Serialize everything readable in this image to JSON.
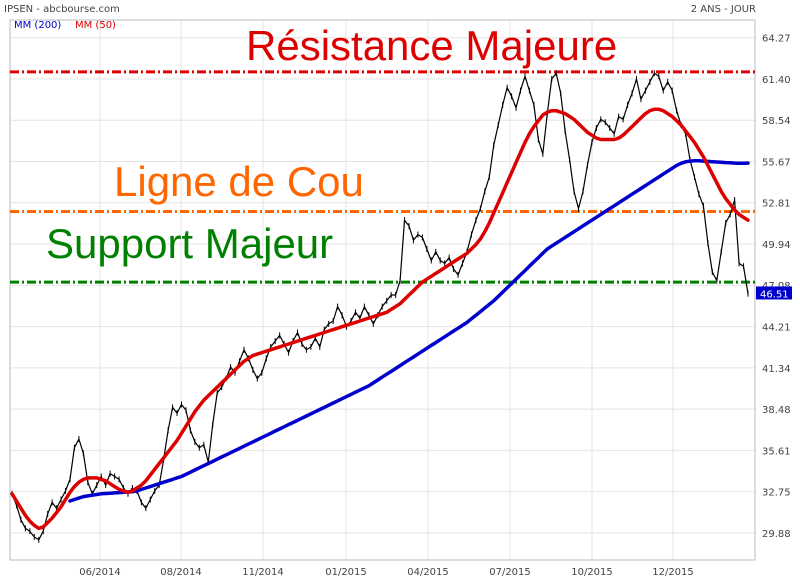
{
  "header": {
    "source": "IPSEN - abcbourse.com",
    "period": "2 ANS - JOUR",
    "legend": [
      {
        "label": "MM (200)",
        "color": "#0000cc"
      },
      {
        "label": "MM (50)",
        "color": "#dd0000"
      }
    ]
  },
  "last_price": "46.51",
  "annotations": [
    {
      "text": "Résistance Majeure",
      "level": 61.9,
      "color": "#dd0000"
    },
    {
      "text": "Ligne de Cou",
      "level": 52.2,
      "color": "#ff6600"
    },
    {
      "text": "Support Majeur",
      "level": 47.3,
      "color": "#008000"
    }
  ],
  "chart_data": {
    "type": "line",
    "title": "IPSEN",
    "xlabel": "",
    "ylabel": "",
    "ylim": [
      28.0,
      65.5
    ],
    "x_tick_labels": [
      "06/2014",
      "08/2014",
      "11/2014",
      "01/2015",
      "04/2015",
      "07/2015",
      "10/2015",
      "12/2015"
    ],
    "y_tick_labels": [
      "64.27",
      "61.40",
      "58.54",
      "55.67",
      "52.81",
      "49.94",
      "47.08",
      "44.21",
      "41.34",
      "38.48",
      "35.61",
      "32.75",
      "29.88"
    ],
    "series": [
      {
        "name": "Cours",
        "color": "#000000",
        "values": [
          32.6,
          31.8,
          30.8,
          30.2,
          30.0,
          29.6,
          29.4,
          30.0,
          31.2,
          32.0,
          31.6,
          32.2,
          32.8,
          33.6,
          35.8,
          36.4,
          35.4,
          33.4,
          32.6,
          33.2,
          33.8,
          33.2,
          34.0,
          33.8,
          33.6,
          33.0,
          32.6,
          33.0,
          32.8,
          32.0,
          31.6,
          32.2,
          32.8,
          33.2,
          35.0,
          37.0,
          38.6,
          38.2,
          38.8,
          38.4,
          37.0,
          36.2,
          35.8,
          36.0,
          34.8,
          37.4,
          39.6,
          40.0,
          40.6,
          41.4,
          41.0,
          41.8,
          42.6,
          42.0,
          41.2,
          40.6,
          41.0,
          42.0,
          42.8,
          43.2,
          43.6,
          43.0,
          42.4,
          43.2,
          43.8,
          43.0,
          42.6,
          42.8,
          43.4,
          42.8,
          44.0,
          44.4,
          44.6,
          45.6,
          45.0,
          44.2,
          44.6,
          45.2,
          44.8,
          45.6,
          45.0,
          44.4,
          45.0,
          45.6,
          46.0,
          46.4,
          46.4,
          47.4,
          51.6,
          51.2,
          50.2,
          50.6,
          50.4,
          49.6,
          48.8,
          49.4,
          48.8,
          48.6,
          49.0,
          48.2,
          47.8,
          48.6,
          49.4,
          50.6,
          51.6,
          52.4,
          53.6,
          54.6,
          56.8,
          58.2,
          59.6,
          60.8,
          60.2,
          59.4,
          60.6,
          61.6,
          60.6,
          59.6,
          57.2,
          56.2,
          59.0,
          61.4,
          61.8,
          60.4,
          57.8,
          55.8,
          53.6,
          52.4,
          53.6,
          55.4,
          57.0,
          58.0,
          58.6,
          58.4,
          58.0,
          57.6,
          58.8,
          58.6,
          59.6,
          60.4,
          61.4,
          60.0,
          60.6,
          61.2,
          61.8,
          61.6,
          60.6,
          61.2,
          60.6,
          59.2,
          58.2,
          57.6,
          55.8,
          54.6,
          53.4,
          52.6,
          50.0,
          48.0,
          47.4,
          49.4,
          51.4,
          52.0,
          53.0,
          48.6,
          48.4,
          46.5
        ]
      },
      {
        "name": "MM (50)",
        "color": "#dd0000",
        "values": [
          32.6,
          32.1,
          31.6,
          31.1,
          30.7,
          30.4,
          30.2,
          30.3,
          30.6,
          30.9,
          31.3,
          31.7,
          32.2,
          32.7,
          33.1,
          33.4,
          33.6,
          33.7,
          33.7,
          33.7,
          33.6,
          33.5,
          33.3,
          33.1,
          32.9,
          32.8,
          32.7,
          32.8,
          33.0,
          33.2,
          33.5,
          33.9,
          34.3,
          34.7,
          35.1,
          35.5,
          35.9,
          36.3,
          36.8,
          37.3,
          37.8,
          38.3,
          38.7,
          39.1,
          39.4,
          39.7,
          40.0,
          40.3,
          40.6,
          40.9,
          41.2,
          41.5,
          41.8,
          42.0,
          42.2,
          42.3,
          42.4,
          42.5,
          42.6,
          42.7,
          42.8,
          42.9,
          43.0,
          43.1,
          43.2,
          43.3,
          43.4,
          43.5,
          43.6,
          43.7,
          43.8,
          43.9,
          44.0,
          44.1,
          44.2,
          44.3,
          44.4,
          44.5,
          44.6,
          44.7,
          44.8,
          44.9,
          45.0,
          45.1,
          45.2,
          45.4,
          45.6,
          45.8,
          46.1,
          46.4,
          46.7,
          47.0,
          47.3,
          47.5,
          47.7,
          47.9,
          48.1,
          48.3,
          48.5,
          48.7,
          48.9,
          49.1,
          49.3,
          49.6,
          49.9,
          50.3,
          50.8,
          51.4,
          52.1,
          52.8,
          53.5,
          54.2,
          54.9,
          55.6,
          56.3,
          57.0,
          57.6,
          58.1,
          58.5,
          58.9,
          59.1,
          59.2,
          59.2,
          59.1,
          59.0,
          58.8,
          58.6,
          58.3,
          58.0,
          57.7,
          57.5,
          57.3,
          57.2,
          57.2,
          57.2,
          57.2,
          57.3,
          57.5,
          57.8,
          58.1,
          58.4,
          58.7,
          59.0,
          59.2,
          59.3,
          59.3,
          59.2,
          59.0,
          58.8,
          58.5,
          58.2,
          57.8,
          57.4,
          57.0,
          56.5,
          56.0,
          55.4,
          54.8,
          54.2,
          53.6,
          53.1,
          52.7,
          52.3,
          52.0,
          51.8,
          51.6
        ]
      },
      {
        "name": "MM (200)",
        "color": "#0000cc",
        "values": [
          null,
          null,
          null,
          null,
          null,
          null,
          null,
          null,
          null,
          null,
          null,
          null,
          null,
          32.1,
          32.2,
          32.3,
          32.4,
          32.45,
          32.5,
          32.55,
          32.6,
          32.62,
          32.64,
          32.66,
          32.68,
          32.7,
          32.72,
          32.74,
          32.8,
          32.9,
          33.0,
          33.1,
          33.2,
          33.3,
          33.4,
          33.5,
          33.6,
          33.7,
          33.8,
          33.95,
          34.1,
          34.25,
          34.4,
          34.55,
          34.7,
          34.85,
          35.0,
          35.15,
          35.3,
          35.45,
          35.6,
          35.75,
          35.9,
          36.05,
          36.2,
          36.35,
          36.5,
          36.65,
          36.8,
          36.95,
          37.1,
          37.25,
          37.4,
          37.55,
          37.7,
          37.85,
          38.0,
          38.15,
          38.3,
          38.45,
          38.6,
          38.75,
          38.9,
          39.05,
          39.2,
          39.35,
          39.5,
          39.65,
          39.8,
          39.95,
          40.1,
          40.3,
          40.5,
          40.7,
          40.9,
          41.1,
          41.3,
          41.5,
          41.7,
          41.9,
          42.1,
          42.3,
          42.5,
          42.7,
          42.9,
          43.1,
          43.3,
          43.5,
          43.7,
          43.9,
          44.1,
          44.3,
          44.5,
          44.75,
          45.0,
          45.25,
          45.5,
          45.75,
          46.0,
          46.3,
          46.6,
          46.9,
          47.2,
          47.5,
          47.8,
          48.1,
          48.4,
          48.7,
          49.0,
          49.3,
          49.6,
          49.8,
          50.0,
          50.2,
          50.4,
          50.6,
          50.8,
          51.0,
          51.2,
          51.4,
          51.6,
          51.8,
          52.0,
          52.2,
          52.4,
          52.6,
          52.8,
          53.0,
          53.2,
          53.4,
          53.6,
          53.8,
          54.0,
          54.2,
          54.4,
          54.6,
          54.8,
          55.0,
          55.2,
          55.4,
          55.55,
          55.65,
          55.7,
          55.72,
          55.72,
          55.7,
          55.68,
          55.66,
          55.64,
          55.62,
          55.6,
          55.58,
          55.56,
          55.55,
          55.55,
          55.56
        ]
      }
    ]
  }
}
